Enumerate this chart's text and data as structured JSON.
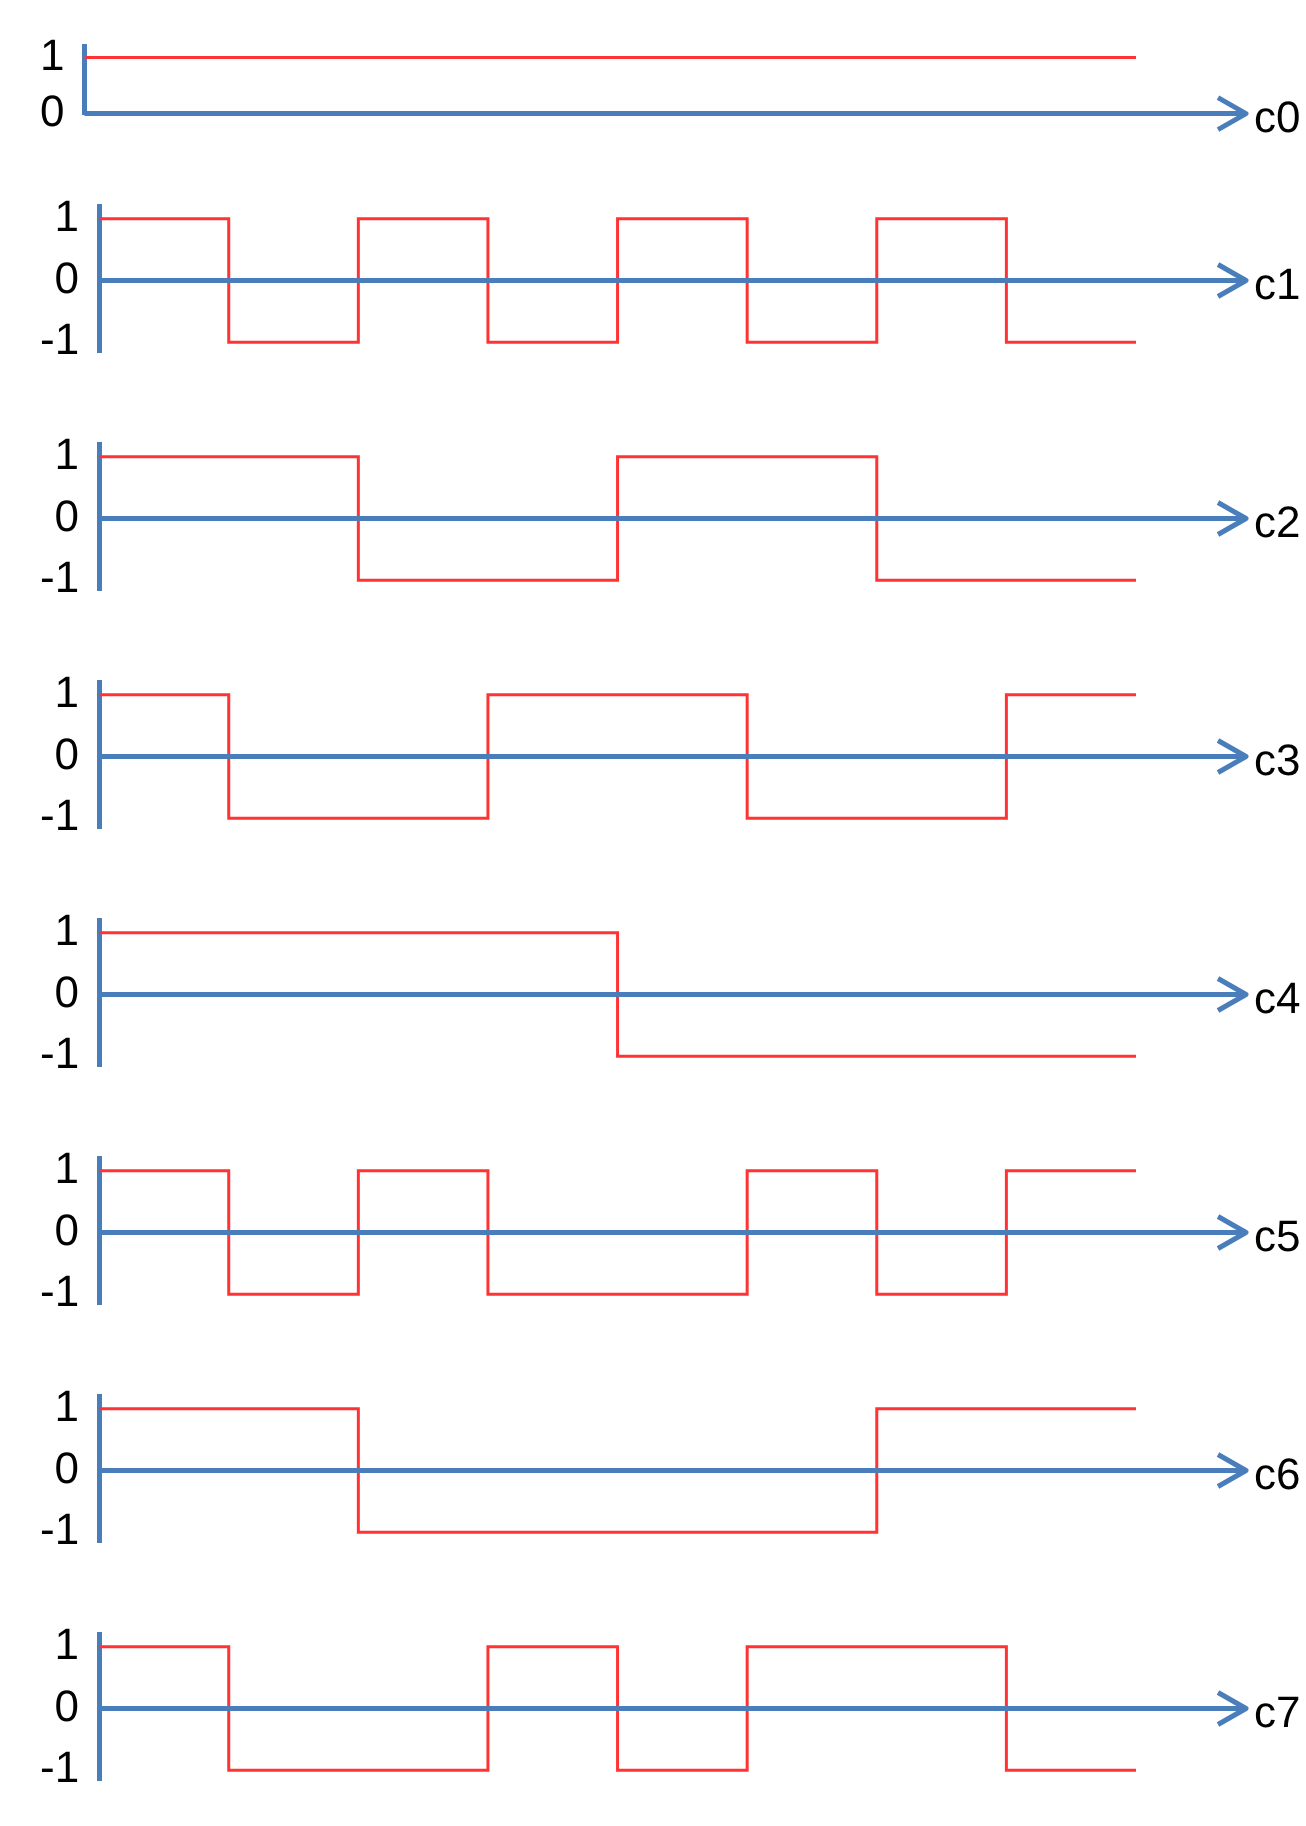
{
  "chart_data": [
    {
      "type": "step",
      "xlabel": "c0",
      "categories": [
        null,
        null,
        null,
        null,
        null,
        null,
        null,
        null,
        null
      ],
      "series": [
        {
          "color": "#ff3333",
          "values": [
            1,
            1,
            1,
            1,
            1,
            1,
            1,
            1,
            1
          ]
        }
      ],
      "ylim": [
        0,
        1.2
      ],
      "yticks": [
        0,
        1
      ],
      "ref_lines": [
        {
          "axis": "y",
          "value": 0,
          "color": "#4a7ebb"
        }
      ],
      "tick_labels": "y",
      "grid": false,
      "legend": false
    },
    {
      "type": "step",
      "xlabel": "c1",
      "categories": [
        null,
        null,
        null,
        null,
        null,
        null,
        null,
        null,
        null
      ],
      "series": [
        {
          "color": "#ff3333",
          "values": [
            1,
            -1,
            1,
            -1,
            1,
            -1,
            1,
            -1,
            -1
          ]
        }
      ],
      "ylim": [
        -1.15,
        1.2
      ],
      "yticks": [
        -1,
        0,
        1
      ],
      "ref_lines": [
        {
          "axis": "y",
          "value": 0,
          "color": "#4a7ebb"
        }
      ],
      "tick_labels": "y",
      "grid": false,
      "legend": false
    },
    {
      "type": "step",
      "xlabel": "c2",
      "categories": [
        null,
        null,
        null,
        null,
        null,
        null,
        null,
        null,
        null
      ],
      "series": [
        {
          "color": "#ff3333",
          "values": [
            1,
            1,
            -1,
            -1,
            1,
            1,
            -1,
            -1,
            -1
          ]
        }
      ],
      "ylim": [
        -1.15,
        1.2
      ],
      "yticks": [
        -1,
        0,
        1
      ],
      "ref_lines": [
        {
          "axis": "y",
          "value": 0,
          "color": "#4a7ebb"
        }
      ],
      "tick_labels": "y",
      "grid": false,
      "legend": false
    },
    {
      "type": "step",
      "xlabel": "c3",
      "categories": [
        null,
        null,
        null,
        null,
        null,
        null,
        null,
        null,
        null
      ],
      "series": [
        {
          "color": "#ff3333",
          "values": [
            1,
            -1,
            -1,
            1,
            1,
            -1,
            -1,
            1,
            1
          ]
        }
      ],
      "ylim": [
        -1.15,
        1.2
      ],
      "yticks": [
        -1,
        0,
        1
      ],
      "ref_lines": [
        {
          "axis": "y",
          "value": 0,
          "color": "#4a7ebb"
        }
      ],
      "tick_labels": "y",
      "grid": false,
      "legend": false
    },
    {
      "type": "step",
      "xlabel": "c4",
      "categories": [
        null,
        null,
        null,
        null,
        null,
        null,
        null,
        null,
        null
      ],
      "series": [
        {
          "color": "#ff3333",
          "values": [
            1,
            1,
            1,
            1,
            -1,
            -1,
            -1,
            -1,
            -1
          ]
        }
      ],
      "ylim": [
        -1.15,
        1.2
      ],
      "yticks": [
        -1,
        0,
        1
      ],
      "ref_lines": [
        {
          "axis": "y",
          "value": 0,
          "color": "#4a7ebb"
        }
      ],
      "tick_labels": "y",
      "grid": false,
      "legend": false
    },
    {
      "type": "step",
      "xlabel": "c5",
      "categories": [
        null,
        null,
        null,
        null,
        null,
        null,
        null,
        null,
        null
      ],
      "series": [
        {
          "color": "#ff3333",
          "values": [
            1,
            -1,
            1,
            -1,
            -1,
            1,
            -1,
            1,
            1
          ]
        }
      ],
      "ylim": [
        -1.15,
        1.2
      ],
      "yticks": [
        -1,
        0,
        1
      ],
      "ref_lines": [
        {
          "axis": "y",
          "value": 0,
          "color": "#4a7ebb"
        }
      ],
      "tick_labels": "y",
      "grid": false,
      "legend": false
    },
    {
      "type": "step",
      "xlabel": "c6",
      "categories": [
        null,
        null,
        null,
        null,
        null,
        null,
        null,
        null,
        null
      ],
      "series": [
        {
          "color": "#ff3333",
          "values": [
            1,
            1,
            -1,
            -1,
            -1,
            -1,
            1,
            1,
            1
          ]
        }
      ],
      "ylim": [
        -1.15,
        1.2
      ],
      "yticks": [
        -1,
        0,
        1
      ],
      "ref_lines": [
        {
          "axis": "y",
          "value": 0,
          "color": "#4a7ebb"
        }
      ],
      "tick_labels": "y",
      "grid": false,
      "legend": false
    },
    {
      "type": "step",
      "xlabel": "c7",
      "categories": [
        null,
        null,
        null,
        null,
        null,
        null,
        null,
        null,
        null
      ],
      "series": [
        {
          "color": "#ff3333",
          "values": [
            1,
            -1,
            -1,
            1,
            -1,
            1,
            1,
            -1,
            -1
          ]
        }
      ],
      "ylim": [
        -1.15,
        1.2
      ],
      "yticks": [
        -1,
        0,
        1
      ],
      "ref_lines": [
        {
          "axis": "y",
          "value": 0,
          "color": "#4a7ebb"
        }
      ],
      "tick_labels": "y",
      "grid": false,
      "legend": false
    }
  ]
}
